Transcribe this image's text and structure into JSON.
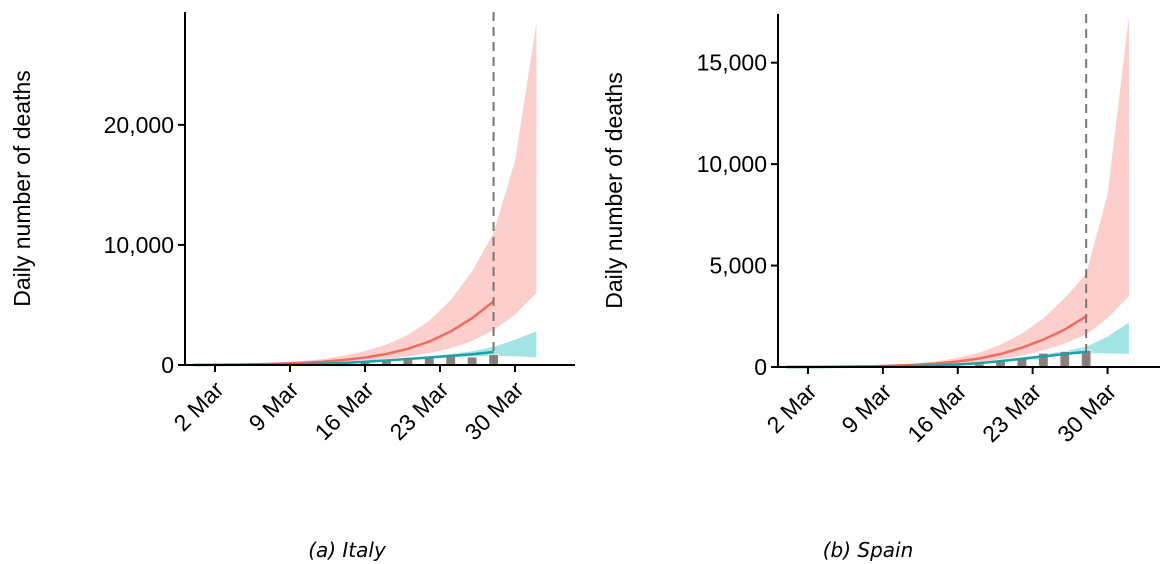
{
  "chart_data": [
    {
      "type": "band-line",
      "caption": "(a) Italy",
      "ylabel": "Daily number of deaths",
      "x": [
        0,
        2,
        4,
        6,
        8,
        10,
        12,
        14,
        16,
        18,
        20,
        22,
        24,
        26,
        28,
        30,
        32
      ],
      "xlim": [
        -0.8,
        35.6
      ],
      "xticks": [
        {
          "value": 2,
          "label": "2 Mar"
        },
        {
          "value": 9,
          "label": "9 Mar"
        },
        {
          "value": 16,
          "label": "16 Mar"
        },
        {
          "value": 23,
          "label": "23 Mar"
        },
        {
          "value": 30,
          "label": "30 Mar"
        }
      ],
      "ylim": [
        0,
        29400
      ],
      "yticks": [
        {
          "value": 0,
          "label": "0"
        },
        {
          "value": 10000,
          "label": "10,000"
        },
        {
          "value": 20000,
          "label": "20,000"
        }
      ],
      "bands": [
        {
          "color": "#fccfcc",
          "upper": [
            20,
            40,
            70,
            120,
            200,
            320,
            500,
            760,
            1150,
            1700,
            2500,
            3700,
            5400,
            7800,
            11000,
            17000,
            28500
          ],
          "lower": [
            5,
            10,
            20,
            35,
            60,
            100,
            150,
            230,
            340,
            500,
            720,
            1000,
            1400,
            2000,
            2900,
            4200,
            6000
          ]
        },
        {
          "color": "#a3e5e6",
          "upper": [
            5,
            10,
            20,
            35,
            60,
            100,
            150,
            220,
            320,
            430,
            560,
            720,
            900,
            1150,
            1500,
            2100,
            2800
          ],
          "lower": [
            3,
            6,
            12,
            22,
            38,
            62,
            95,
            140,
            250,
            350,
            450,
            550,
            650,
            720,
            780,
            720,
            650
          ]
        }
      ],
      "bars": {
        "color": "#8c7f7c",
        "values": [
          5,
          18,
          27,
          49,
          133,
          168,
          189,
          175,
          368,
          475,
          627,
          651,
          743,
          662,
          889,
          null,
          null
        ]
      },
      "lines": [
        {
          "color": "#f26b5f",
          "values": [
            10,
            20,
            40,
            65,
            110,
            180,
            270,
            420,
            620,
            920,
            1350,
            1950,
            2800,
            3900,
            5300,
            null,
            null
          ]
        },
        {
          "color": "#1aa3a8",
          "values": [
            4,
            8,
            15,
            28,
            45,
            75,
            115,
            170,
            270,
            380,
            500,
            620,
            760,
            900,
            1080,
            null,
            null
          ]
        }
      ],
      "vline": 28
    },
    {
      "type": "band-line",
      "caption": "(b) Spain",
      "ylabel": "Daily number of deaths",
      "x": [
        0,
        2,
        4,
        6,
        8,
        10,
        12,
        14,
        16,
        18,
        20,
        22,
        24,
        26,
        28,
        30,
        32
      ],
      "xlim": [
        -0.8,
        34.9
      ],
      "xticks": [
        {
          "value": 2,
          "label": "2 Mar"
        },
        {
          "value": 9,
          "label": "9 Mar"
        },
        {
          "value": 16,
          "label": "16 Mar"
        },
        {
          "value": 23,
          "label": "23 Mar"
        },
        {
          "value": 30,
          "label": "30 Mar"
        }
      ],
      "ylim": [
        0,
        17400
      ],
      "yticks": [
        {
          "value": 0,
          "label": "0"
        },
        {
          "value": 5000,
          "label": "5,000"
        },
        {
          "value": 10000,
          "label": "10,000"
        },
        {
          "value": 15000,
          "label": "15,000"
        }
      ],
      "bands": [
        {
          "color": "#fccfcc",
          "upper": [
            5,
            10,
            20,
            35,
            60,
            100,
            170,
            280,
            450,
            700,
            1100,
            1650,
            2400,
            3400,
            4600,
            8500,
            17300
          ],
          "lower": [
            2,
            4,
            8,
            15,
            25,
            40,
            65,
            100,
            160,
            250,
            380,
            560,
            820,
            1150,
            1600,
            2400,
            3500
          ]
        },
        {
          "color": "#a3e5e6",
          "upper": [
            2,
            4,
            8,
            14,
            24,
            40,
            65,
            100,
            160,
            240,
            350,
            480,
            620,
            780,
            1000,
            1500,
            2200
          ],
          "lower": [
            1,
            2,
            4,
            7,
            12,
            20,
            33,
            50,
            80,
            150,
            250,
            380,
            500,
            600,
            680,
            670,
            650
          ]
        }
      ],
      "bars": {
        "color": "#8c7f7c",
        "values": [
          null,
          null,
          1,
          3,
          11,
          8,
          37,
          62,
          48,
          152,
          262,
          394,
          680,
          769,
          832,
          null,
          null
        ]
      },
      "lines": [
        {
          "color": "#f26b5f",
          "values": [
            3,
            7,
            13,
            22,
            38,
            65,
            105,
            170,
            270,
            420,
            640,
            950,
            1350,
            1850,
            2500,
            null,
            null
          ]
        },
        {
          "color": "#1aa3a8",
          "values": [
            1.5,
            3,
            6,
            11,
            19,
            32,
            52,
            80,
            125,
            190,
            290,
            400,
            520,
            640,
            750,
            null,
            null
          ]
        }
      ],
      "vline": 28
    }
  ]
}
